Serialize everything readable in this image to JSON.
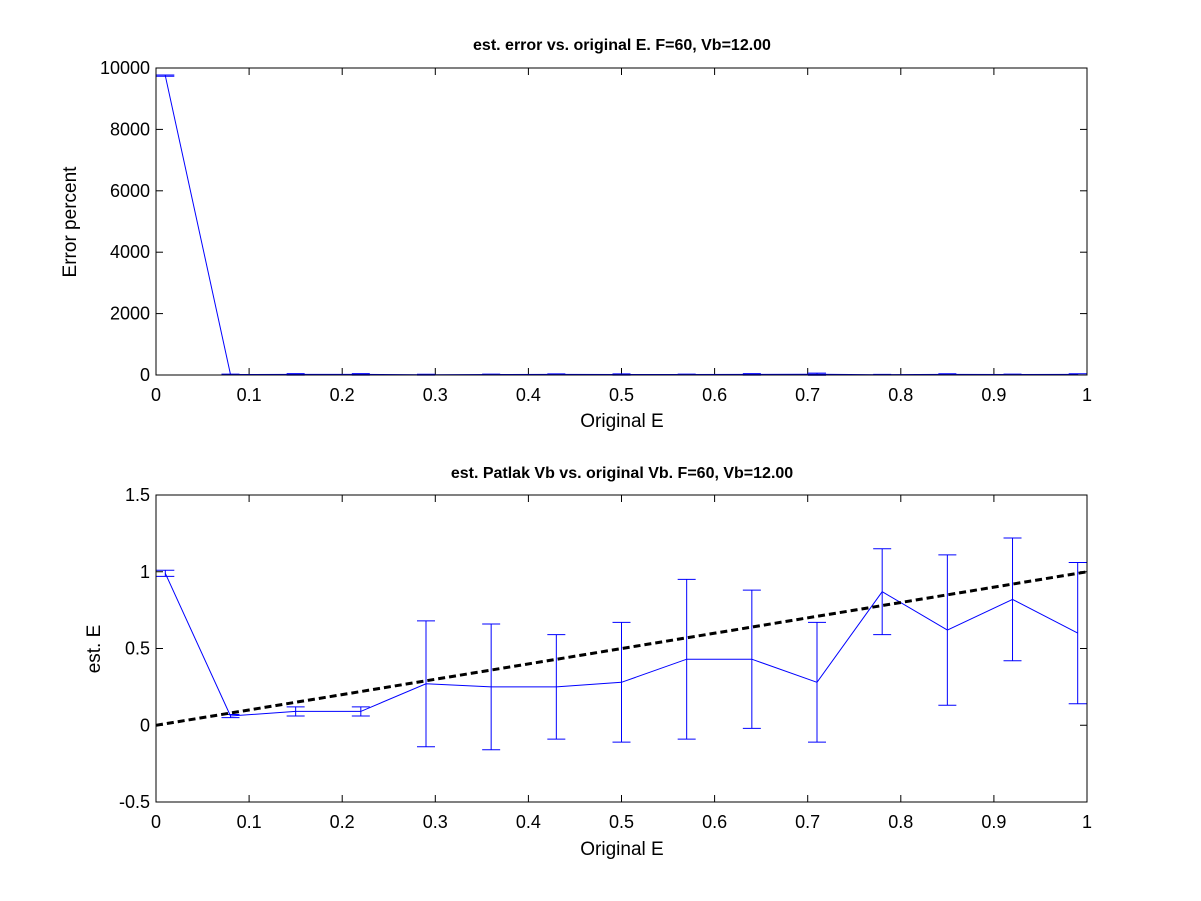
{
  "chart_data": [
    {
      "type": "line",
      "title": "est. error vs. original E. F=60, Vb=12.00",
      "xlabel": "Original E",
      "ylabel": "Error percent",
      "xlim": [
        0,
        1
      ],
      "ylim": [
        0,
        10000
      ],
      "xticks": [
        0,
        0.1,
        0.2,
        0.3,
        0.4,
        0.5,
        0.6,
        0.7,
        0.8,
        0.9,
        1
      ],
      "xtick_labels": [
        "0",
        "0.1",
        "0.2",
        "0.3",
        "0.4",
        "0.5",
        "0.6",
        "0.7",
        "0.8",
        "0.9",
        "1"
      ],
      "yticks": [
        0,
        2000,
        4000,
        6000,
        8000,
        10000
      ],
      "ytick_labels": [
        "0",
        "2000",
        "4000",
        "6000",
        "8000",
        "10000"
      ],
      "grid": false,
      "series": [
        {
          "color": "#0000ff",
          "x": [
            0.01,
            0.08,
            0.15,
            0.22,
            0.29,
            0.36,
            0.43,
            0.5,
            0.57,
            0.64,
            0.71,
            0.78,
            0.85,
            0.92,
            0.99
          ],
          "y": [
            9750,
            15,
            20,
            20,
            10,
            15,
            20,
            15,
            15,
            20,
            25,
            10,
            20,
            15,
            20
          ],
          "error": [
            20,
            15,
            25,
            25,
            15,
            15,
            15,
            20,
            15,
            25,
            35,
            10,
            20,
            15,
            20
          ]
        }
      ]
    },
    {
      "type": "line",
      "title": "est. Patlak Vb vs. original Vb. F=60, Vb=12.00",
      "xlabel": "Original E",
      "ylabel": "est. E",
      "xlim": [
        0,
        1
      ],
      "ylim": [
        -0.5,
        1.5
      ],
      "xticks": [
        0,
        0.1,
        0.2,
        0.3,
        0.4,
        0.5,
        0.6,
        0.7,
        0.8,
        0.9,
        1
      ],
      "xtick_labels": [
        "0",
        "0.1",
        "0.2",
        "0.3",
        "0.4",
        "0.5",
        "0.6",
        "0.7",
        "0.8",
        "0.9",
        "1"
      ],
      "yticks": [
        -0.5,
        0,
        0.5,
        1,
        1.5
      ],
      "ytick_labels": [
        "-0.5",
        "0",
        "0.5",
        "1",
        "1.5"
      ],
      "grid": false,
      "series": [
        {
          "color": "#0000ff",
          "x": [
            0.01,
            0.08,
            0.15,
            0.22,
            0.29,
            0.36,
            0.43,
            0.5,
            0.57,
            0.64,
            0.71,
            0.78,
            0.85,
            0.92,
            0.99
          ],
          "y": [
            0.99,
            0.06,
            0.09,
            0.09,
            0.27,
            0.25,
            0.25,
            0.28,
            0.43,
            0.43,
            0.28,
            0.87,
            0.62,
            0.82,
            0.6
          ],
          "error": [
            0.02,
            0.01,
            0.03,
            0.03,
            0.41,
            0.41,
            0.34,
            0.39,
            0.52,
            0.45,
            0.39,
            0.28,
            0.49,
            0.4,
            0.46
          ]
        },
        {
          "style": "dashed",
          "color": "#000000",
          "x": [
            0,
            1
          ],
          "y": [
            0,
            1
          ]
        }
      ]
    }
  ]
}
